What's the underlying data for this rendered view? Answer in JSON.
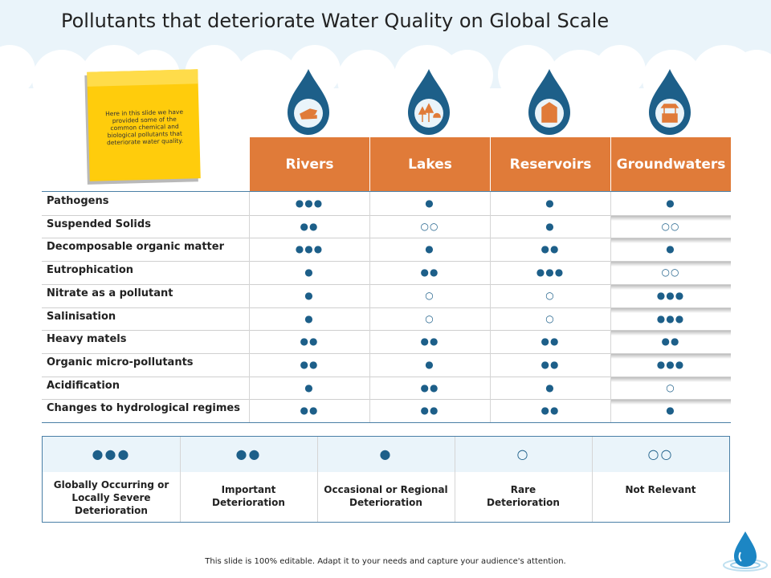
{
  "title": "Pollutants that deteriorate Water Quality on Global Scale",
  "note": "Here in this slide we have provided some of the common chemical and biological pollutants that deteriorate water quality.",
  "columns": [
    "Rivers",
    "Lakes",
    "Reservoirs",
    "Groundwaters"
  ],
  "column_icons": [
    "hand-icon",
    "trees-icon",
    "reservoir-icon",
    "well-icon"
  ],
  "rows": [
    {
      "label": "Pathogens",
      "values": [
        "●●●",
        "●",
        "●",
        "●"
      ]
    },
    {
      "label": "Suspended Solids",
      "values": [
        "●●",
        "○○",
        "●",
        "○○"
      ]
    },
    {
      "label": "Decomposable organic matter",
      "values": [
        "●●●",
        "●",
        "●●",
        "●"
      ]
    },
    {
      "label": "Eutrophication",
      "values": [
        "●",
        "●●",
        "●●●",
        "○○"
      ]
    },
    {
      "label": "Nitrate as a pollutant",
      "values": [
        "●",
        "○",
        "○",
        "●●●"
      ]
    },
    {
      "label": "Salinisation",
      "values": [
        "●",
        "○",
        "○",
        "●●●"
      ]
    },
    {
      "label": "Heavy matels",
      "values": [
        "●●",
        "●●",
        "●●",
        "●●"
      ]
    },
    {
      "label": "Organic micro-pollutants",
      "values": [
        "●●",
        "●",
        "●●",
        "●●●"
      ]
    },
    {
      "label": "Acidification",
      "values": [
        "●",
        "●●",
        "●",
        "○"
      ]
    },
    {
      "label": "Changes to hydrological regimes",
      "values": [
        "●●",
        "●●",
        "●●",
        "●"
      ]
    }
  ],
  "legend": [
    {
      "symbol": "●●●",
      "text": "Globally Occurring or Locally Severe Deterioration"
    },
    {
      "symbol": "●●",
      "text": "Important Deterioration"
    },
    {
      "symbol": "●",
      "text": "Occasional or Regional Deterioration"
    },
    {
      "symbol": "○",
      "text": "Rare Deterioration"
    },
    {
      "symbol": "○○",
      "text": "Not Relevant"
    }
  ],
  "footer": "This slide is 100% editable. Adapt it to your needs and capture your audience's attention.",
  "colors": {
    "accent": "#e07b39",
    "drop": "#1d5f89",
    "note": "#ffcc0c"
  }
}
